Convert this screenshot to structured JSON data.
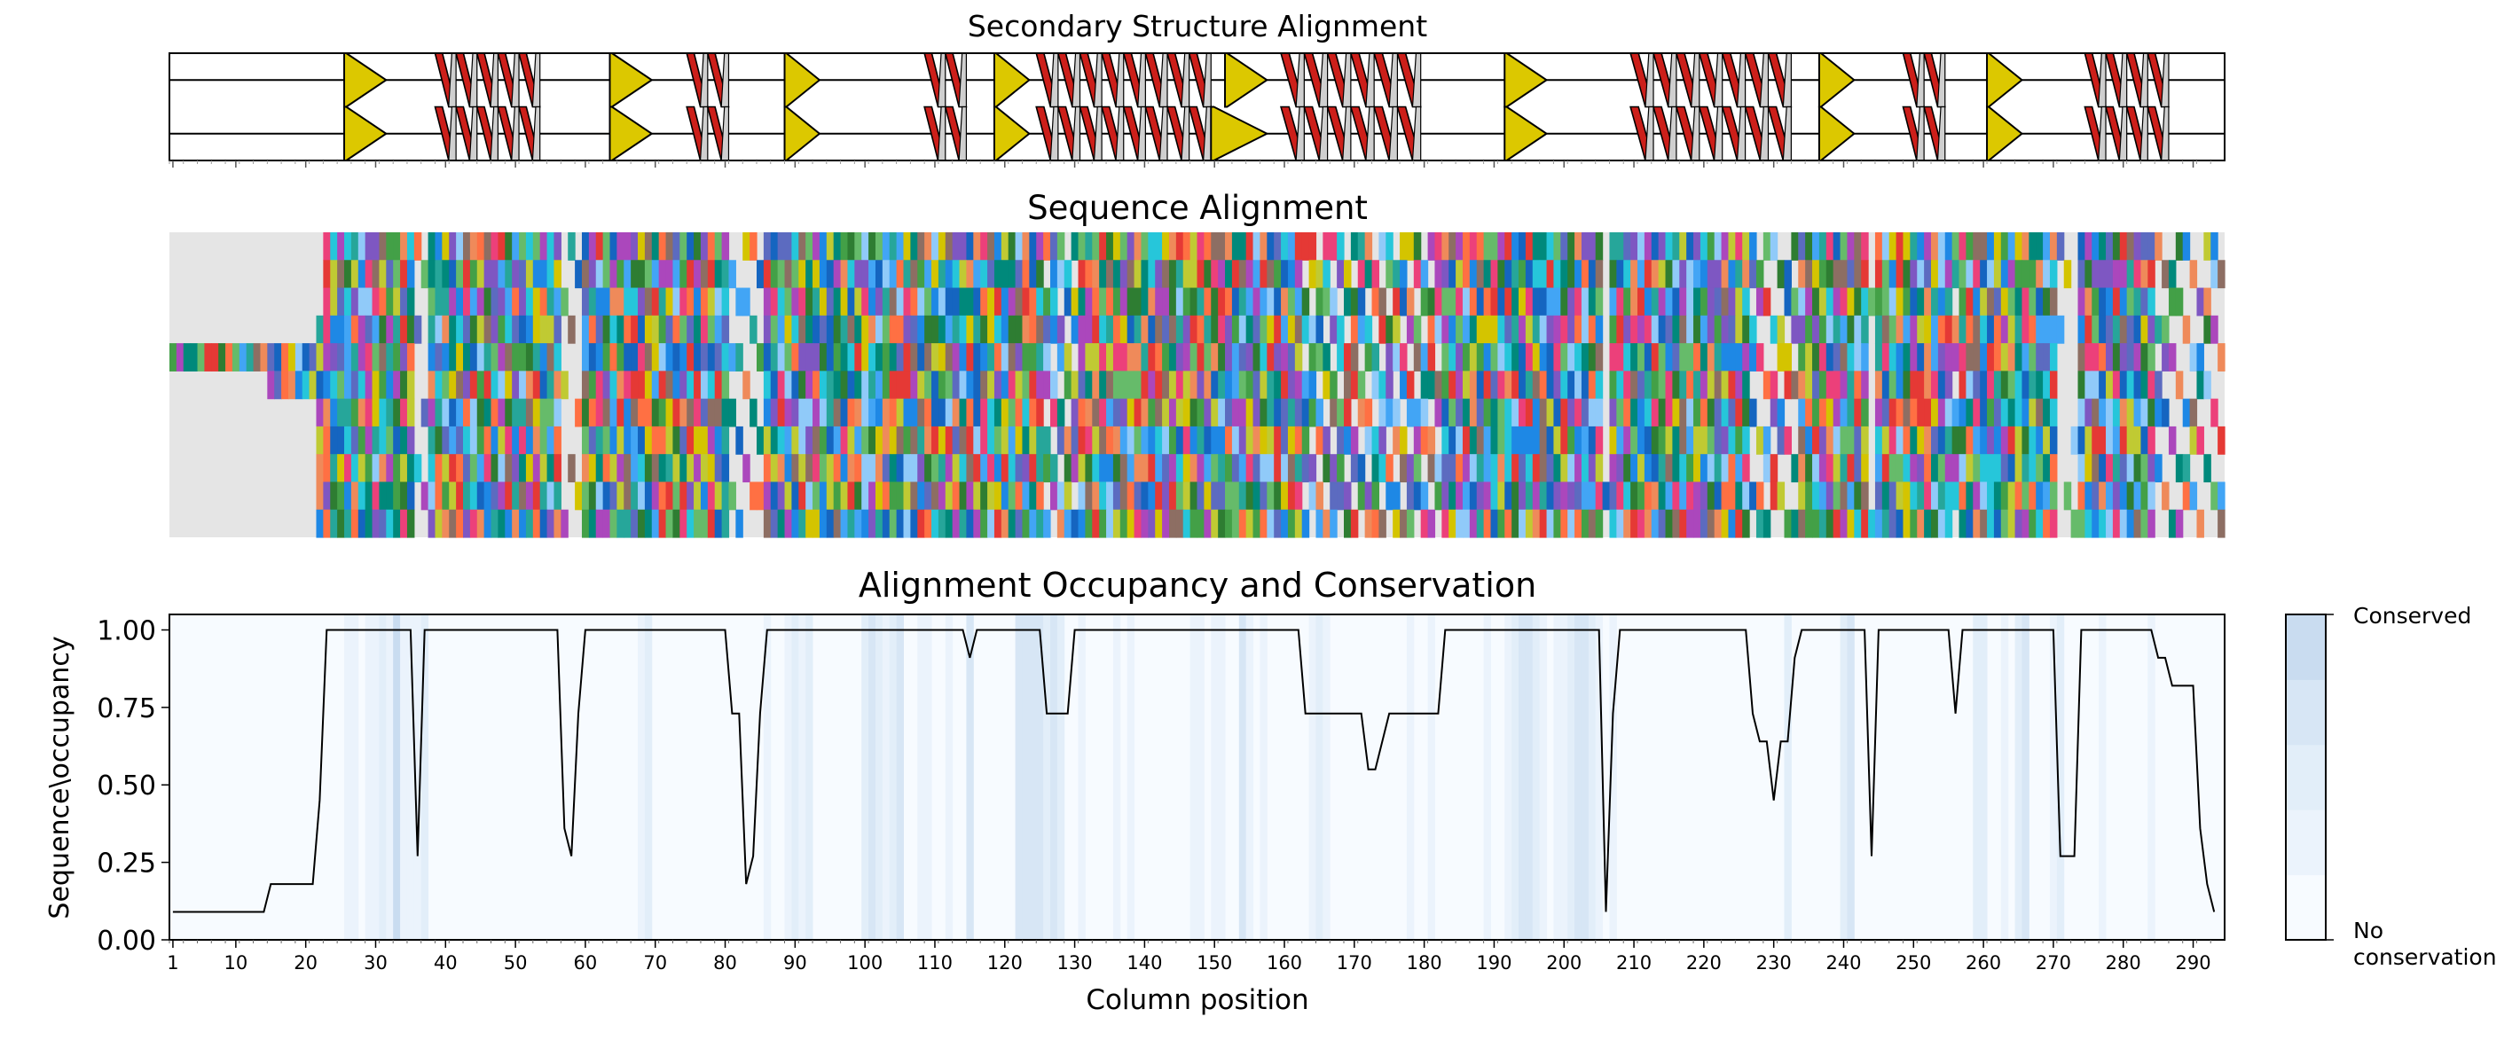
{
  "secondary_structure": {
    "title": "Secondary Structure Alignment",
    "rows": 2,
    "elements": [
      {
        "type": "strand",
        "row": 0,
        "start": 26,
        "end": 31
      },
      {
        "type": "strand",
        "row": 1,
        "start": 26,
        "end": 31
      },
      {
        "type": "helix",
        "row": 0,
        "start": 39,
        "end": 53
      },
      {
        "type": "helix",
        "row": 1,
        "start": 39,
        "end": 53
      },
      {
        "type": "strand",
        "row": 0,
        "start": 64,
        "end": 69
      },
      {
        "type": "strand",
        "row": 1,
        "start": 64,
        "end": 69
      },
      {
        "type": "helix",
        "row": 0,
        "start": 75,
        "end": 80
      },
      {
        "type": "helix",
        "row": 1,
        "start": 75,
        "end": 80
      },
      {
        "type": "strand",
        "row": 0,
        "start": 89,
        "end": 93
      },
      {
        "type": "strand",
        "row": 1,
        "start": 89,
        "end": 93
      },
      {
        "type": "helix",
        "row": 0,
        "start": 109,
        "end": 114
      },
      {
        "type": "helix",
        "row": 1,
        "start": 109,
        "end": 114
      },
      {
        "type": "strand",
        "row": 0,
        "start": 119,
        "end": 123
      },
      {
        "type": "strand",
        "row": 1,
        "start": 119,
        "end": 123
      },
      {
        "type": "helix",
        "row": 0,
        "start": 125,
        "end": 149
      },
      {
        "type": "helix",
        "row": 1,
        "start": 125,
        "end": 149
      },
      {
        "type": "strand",
        "row": 0,
        "start": 152,
        "end": 157
      },
      {
        "type": "strand",
        "row": 1,
        "start": 150,
        "end": 157
      },
      {
        "type": "helix",
        "row": 0,
        "start": 160,
        "end": 179
      },
      {
        "type": "helix",
        "row": 1,
        "start": 160,
        "end": 179
      },
      {
        "type": "strand",
        "row": 0,
        "start": 192,
        "end": 197
      },
      {
        "type": "strand",
        "row": 1,
        "start": 192,
        "end": 197
      },
      {
        "type": "helix",
        "row": 0,
        "start": 210,
        "end": 232
      },
      {
        "type": "helix",
        "row": 1,
        "start": 210,
        "end": 232
      },
      {
        "type": "strand",
        "row": 0,
        "start": 237,
        "end": 241
      },
      {
        "type": "strand",
        "row": 1,
        "start": 237,
        "end": 241
      },
      {
        "type": "helix",
        "row": 0,
        "start": 249,
        "end": 254
      },
      {
        "type": "helix",
        "row": 1,
        "start": 249,
        "end": 254
      },
      {
        "type": "strand",
        "row": 0,
        "start": 261,
        "end": 265
      },
      {
        "type": "strand",
        "row": 1,
        "start": 261,
        "end": 265
      },
      {
        "type": "helix",
        "row": 0,
        "start": 275,
        "end": 286
      },
      {
        "type": "helix",
        "row": 1,
        "start": 275,
        "end": 286
      }
    ]
  },
  "sequence_alignment": {
    "title": "Sequence Alignment",
    "rows": 11,
    "gap_color": "#e5e5e5",
    "residue_palette": [
      "#1565c0",
      "#42a5f5",
      "#e53935",
      "#43a047",
      "#d4c400",
      "#ab47bc",
      "#ef8a5a",
      "#26c6da",
      "#7e57c2",
      "#00897b",
      "#ff7043",
      "#2e7d32",
      "#5c6bc0",
      "#66bb6a",
      "#ec407a",
      "#1e88e5",
      "#8d6e63",
      "#90caf9",
      "#26a69a",
      "#c0ca33"
    ],
    "row_ranges": [
      [
        [
          23,
          294
        ]
      ],
      [
        [
          23,
          294
        ]
      ],
      [
        [
          23,
          294
        ]
      ],
      [
        [
          22,
          294
        ]
      ],
      [
        [
          1,
          294
        ]
      ],
      [
        [
          15,
          294
        ]
      ],
      [
        [
          22,
          294
        ]
      ],
      [
        [
          22,
          294
        ]
      ],
      [
        [
          22,
          294
        ]
      ],
      [
        [
          22,
          294
        ]
      ],
      [
        [
          22,
          294
        ]
      ]
    ],
    "column_gaps": [
      {
        "rows": [
          0,
          1,
          2,
          3,
          4,
          5,
          6,
          7,
          8,
          9,
          10
        ],
        "start": 36,
        "end": 37,
        "fraction": 0.72
      },
      {
        "rows": [
          0,
          1,
          2,
          3,
          4,
          5,
          6,
          7,
          8,
          9,
          10
        ],
        "start": 57,
        "end": 59,
        "fraction": 0.65
      },
      {
        "rows": [
          0,
          1,
          2,
          3,
          4,
          5,
          6,
          7,
          8,
          9,
          10
        ],
        "start": 81,
        "end": 85,
        "fraction": 0.55
      },
      {
        "rows": [
          0,
          1,
          2,
          3,
          4,
          5,
          6,
          7,
          8,
          9,
          10
        ],
        "start": 126,
        "end": 130,
        "fraction": 0.27
      },
      {
        "rows": [
          0,
          1,
          2,
          3,
          4,
          5,
          6,
          7,
          8,
          9,
          10
        ],
        "start": 163,
        "end": 182,
        "fraction": 0.27
      },
      {
        "rows": [
          0,
          1,
          2,
          3,
          4,
          5,
          6,
          7,
          8,
          9,
          10
        ],
        "start": 206,
        "end": 206,
        "fraction": 0.9
      },
      {
        "rows": [
          0,
          1,
          2,
          3,
          4,
          5,
          6,
          7,
          8,
          9,
          10
        ],
        "start": 227,
        "end": 233,
        "fraction": 0.4
      },
      {
        "rows": [
          0,
          1,
          2,
          3,
          4,
          5,
          6,
          7,
          8,
          9,
          10
        ],
        "start": 244,
        "end": 244,
        "fraction": 0.73
      },
      {
        "rows": [
          0,
          1,
          2,
          3,
          4,
          5,
          6,
          7,
          8,
          9,
          10
        ],
        "start": 256,
        "end": 256,
        "fraction": 0.27
      },
      {
        "rows": [
          0,
          1,
          2,
          3,
          4,
          5,
          6,
          7,
          8,
          9,
          10
        ],
        "start": 271,
        "end": 273,
        "fraction": 0.73
      },
      {
        "rows": [
          0,
          1,
          2,
          3,
          4,
          5,
          6,
          7,
          8,
          9,
          10
        ],
        "start": 285,
        "end": 294,
        "fraction": 0.5
      }
    ]
  },
  "chart_data": {
    "type": "line",
    "title": "Alignment Occupancy and Conservation",
    "xlabel": "Column position",
    "ylabel": "Sequence\\occupancy",
    "xlim": [
      1,
      294
    ],
    "ylim": [
      0,
      1.05
    ],
    "xticks": [
      1,
      10,
      20,
      30,
      40,
      50,
      60,
      70,
      80,
      90,
      100,
      110,
      120,
      130,
      140,
      150,
      160,
      170,
      180,
      190,
      200,
      210,
      220,
      230,
      240,
      250,
      260,
      270,
      280,
      290
    ],
    "yticks": [
      "0.00",
      "0.25",
      "0.50",
      "0.75",
      "1.00"
    ],
    "occupancy": {
      "x": [
        1,
        14,
        15,
        21,
        22,
        23,
        35,
        36,
        37,
        56,
        57,
        58,
        59,
        60,
        80,
        81,
        82,
        83,
        84,
        85,
        86,
        114,
        115,
        116,
        125,
        126,
        129,
        130,
        162,
        163,
        171,
        172,
        173,
        175,
        182,
        183,
        205,
        206,
        207,
        208,
        226,
        227,
        228,
        229,
        230,
        231,
        232,
        233,
        234,
        243,
        244,
        245,
        255,
        256,
        257,
        270,
        271,
        273,
        274,
        284,
        285,
        286,
        287,
        290,
        291,
        292,
        293
      ],
      "y": [
        0.09,
        0.09,
        0.18,
        0.18,
        0.45,
        1.0,
        1.0,
        0.27,
        1.0,
        1.0,
        0.36,
        0.27,
        0.73,
        1.0,
        1.0,
        0.73,
        0.73,
        0.18,
        0.27,
        0.73,
        1.0,
        1.0,
        0.91,
        1.0,
        1.0,
        0.73,
        0.73,
        1.0,
        1.0,
        0.73,
        0.73,
        0.55,
        0.55,
        0.73,
        0.73,
        1.0,
        1.0,
        0.09,
        0.73,
        1.0,
        1.0,
        0.73,
        0.64,
        0.64,
        0.45,
        0.64,
        0.64,
        0.91,
        1.0,
        1.0,
        0.27,
        1.0,
        1.0,
        0.73,
        1.0,
        1.0,
        0.27,
        0.27,
        1.0,
        1.0,
        0.91,
        0.91,
        0.82,
        0.82,
        0.36,
        0.18,
        0.09
      ]
    },
    "conservation": {
      "positions": [
        26,
        27,
        29,
        30,
        31,
        32,
        33,
        34,
        35,
        36,
        37,
        68,
        69,
        86,
        89,
        90,
        91,
        92,
        100,
        101,
        102,
        103,
        104,
        105,
        108,
        109,
        112,
        115,
        122,
        123,
        124,
        125,
        126,
        127,
        128,
        131,
        136,
        138,
        147,
        148,
        150,
        151,
        154,
        155,
        157,
        164,
        165,
        166,
        178,
        181,
        189,
        192,
        193,
        194,
        195,
        196,
        197,
        199,
        200,
        201,
        202,
        203,
        204,
        205,
        207,
        232,
        240,
        241,
        259,
        260,
        263,
        265,
        266,
        270,
        271,
        277,
        284
      ],
      "levels": [
        1,
        1,
        1,
        1,
        2,
        1,
        4,
        1,
        1,
        1,
        2,
        1,
        2,
        1,
        1,
        2,
        1,
        2,
        2,
        3,
        2,
        1,
        2,
        3,
        1,
        1,
        1,
        3,
        3,
        3,
        3,
        3,
        2,
        3,
        2,
        1,
        1,
        1,
        1,
        1,
        1,
        1,
        3,
        1,
        1,
        1,
        2,
        1,
        1,
        1,
        1,
        1,
        2,
        3,
        3,
        2,
        1,
        1,
        1,
        2,
        3,
        3,
        2,
        1,
        1,
        2,
        2,
        3,
        2,
        2,
        1,
        2,
        3,
        1,
        2,
        1,
        1
      ]
    },
    "colorbar": {
      "top_label": "Conserved",
      "bottom_label": "No\nconservation",
      "colors": [
        "#f7fbff",
        "#ebf3fc",
        "#e2eef9",
        "#d7e6f5",
        "#c9dcf0"
      ]
    },
    "grid": false,
    "legend": "none"
  }
}
